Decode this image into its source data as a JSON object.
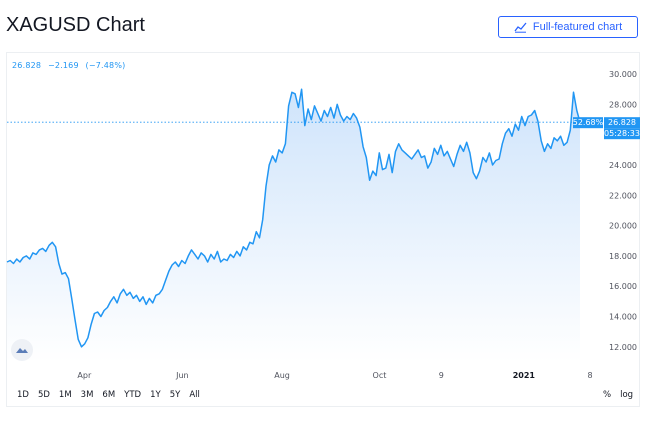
{
  "header": {
    "title": "XAGUSD Chart",
    "full_featured_label": "Full-featured chart"
  },
  "quote": {
    "last": "26.828",
    "change": "−2.169",
    "change_pct": "(−7.48%)"
  },
  "price_badges": {
    "percent": "52.68%",
    "price": "26.828",
    "countdown": "05:28:33"
  },
  "range_buttons": [
    "1D",
    "5D",
    "1M",
    "3M",
    "6M",
    "YTD",
    "1Y",
    "5Y",
    "All"
  ],
  "scale_options": [
    "%",
    "log"
  ],
  "colors": {
    "line": "#2196f3",
    "area_top": "#cfe4fb",
    "area_bottom": "#ffffff",
    "badge": "#2196f3",
    "button": "#2962ff"
  },
  "icons": {
    "full_featured": "chart-line-icon",
    "logo": "tradingview-logo-icon"
  },
  "chart_data": {
    "type": "area",
    "title": "",
    "xlabel": "",
    "ylabel": "",
    "ylim": [
      11,
      30.8
    ],
    "y_ticks": [
      "12.000",
      "14.000",
      "16.000",
      "18.000",
      "20.000",
      "22.000",
      "24.000",
      "26.000",
      "28.000",
      "30.000"
    ],
    "x_ticks": [
      {
        "label": "Apr",
        "x": 0.135,
        "bold": false
      },
      {
        "label": "Jun",
        "x": 0.306,
        "bold": false
      },
      {
        "label": "Aug",
        "x": 0.48,
        "bold": false
      },
      {
        "label": "Oct",
        "x": 0.65,
        "bold": false
      },
      {
        "label": "9",
        "x": 0.758,
        "bold": false
      },
      {
        "label": "2021",
        "x": 0.902,
        "bold": true
      },
      {
        "label": "8",
        "x": 1.0,
        "bold": false
      }
    ],
    "last_value": 26.828,
    "series": [
      {
        "values": [
          17.6,
          17.7,
          17.5,
          17.8,
          17.6,
          17.9,
          18.0,
          17.8,
          18.2,
          18.1,
          18.4,
          18.5,
          18.3,
          18.7,
          18.9,
          18.6,
          17.5,
          16.8,
          16.9,
          16.5,
          15.2,
          13.8,
          12.5,
          12.0,
          12.2,
          12.6,
          13.5,
          14.2,
          14.3,
          14.0,
          14.4,
          14.6,
          15.0,
          15.3,
          14.9,
          15.5,
          15.8,
          15.4,
          15.6,
          15.2,
          15.4,
          15.0,
          15.3,
          14.8,
          15.2,
          14.9,
          15.4,
          15.5,
          15.8,
          16.4,
          17.0,
          17.4,
          17.6,
          17.3,
          17.7,
          17.5,
          18.0,
          18.4,
          18.1,
          17.8,
          18.2,
          18.0,
          17.6,
          18.1,
          17.8,
          18.3,
          17.6,
          17.8,
          17.7,
          18.1,
          17.9,
          18.3,
          18.0,
          18.6,
          18.4,
          18.9,
          18.8,
          19.6,
          19.2,
          20.4,
          22.6,
          24.0,
          24.6,
          24.2,
          25.0,
          24.8,
          25.4,
          27.9,
          28.8,
          28.7,
          27.8,
          29.0,
          26.6,
          27.7,
          27.0,
          27.9,
          27.4,
          26.9,
          27.6,
          27.2,
          27.8,
          27.1,
          28.0,
          27.3,
          26.9,
          27.2,
          27.0,
          27.4,
          27.1,
          26.5,
          25.2,
          24.5,
          23.0,
          23.6,
          23.3,
          24.8,
          23.7,
          23.8,
          24.7,
          23.5,
          24.9,
          25.4,
          25.0,
          24.8,
          24.6,
          24.4,
          24.7,
          25.0,
          24.5,
          24.6,
          23.8,
          24.2,
          25.1,
          24.7,
          25.3,
          24.6,
          24.9,
          24.4,
          23.9,
          24.7,
          25.3,
          24.9,
          25.5,
          24.8,
          23.5,
          23.1,
          23.6,
          24.5,
          24.2,
          24.8,
          24.0,
          24.3,
          24.4,
          25.4,
          26.1,
          26.4,
          25.9,
          26.7,
          26.3,
          27.2,
          26.6,
          27.2,
          27.3,
          27.6,
          26.9,
          25.6,
          24.9,
          25.4,
          25.1,
          25.8,
          25.6,
          25.9,
          25.3,
          25.5,
          26.3,
          28.8,
          27.6,
          26.828
        ]
      }
    ]
  }
}
